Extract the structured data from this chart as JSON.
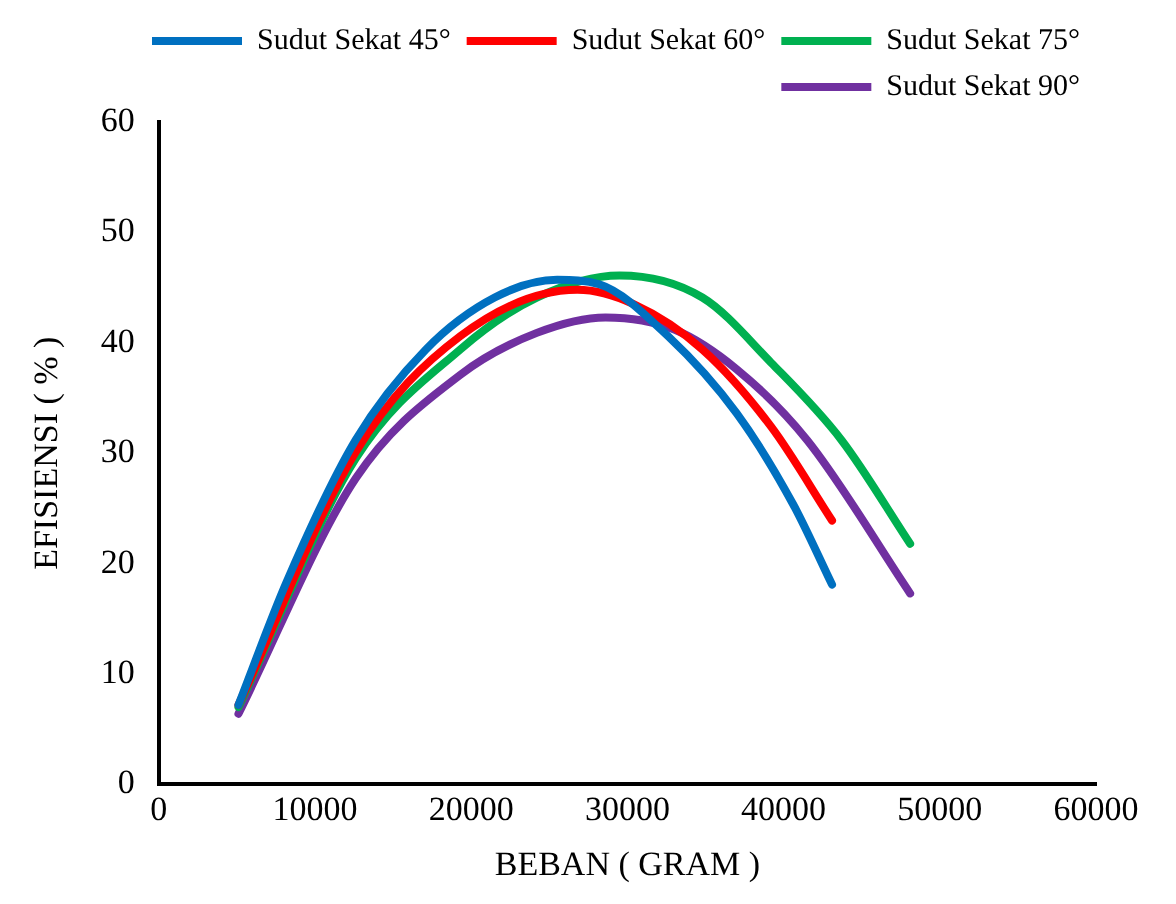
{
  "chart_data": {
    "type": "line",
    "xlabel": "BEBAN ( GRAM )",
    "ylabel": "EFISIENSI ( % )",
    "xlim": [
      0,
      60000
    ],
    "xticks": [
      0,
      10000,
      20000,
      30000,
      40000,
      50000,
      60000
    ],
    "ylim": [
      0,
      60
    ],
    "yticks": [
      0,
      10,
      20,
      30,
      40,
      50,
      60
    ],
    "grid": false,
    "legend": "top right",
    "marker": "none",
    "line_style": "solid",
    "series": [
      {
        "name": "Sudut Sekat 45°",
        "color": "#0070c0",
        "x": [
          5100,
          8200,
          12600,
          17100,
          21500,
          25500,
          28200,
          32600,
          37000,
          40600,
          43100
        ],
        "values": [
          7.2,
          18.4,
          31.2,
          39.4,
          44.1,
          45.7,
          45.3,
          40.6,
          33.6,
          25.4,
          18.1
        ]
      },
      {
        "name": "Sudut Sekat 60°",
        "color": "#ff0000",
        "x": [
          5100,
          12600,
          19300,
          26800,
          30400,
          34800,
          39200,
          43100
        ],
        "values": [
          7.2,
          30.1,
          40.6,
          44.8,
          43.5,
          39.4,
          32.4,
          23.9
        ]
      },
      {
        "name": "Sudut Sekat 75°",
        "color": "#00b050",
        "x": [
          5100,
          12600,
          19300,
          24200,
          29500,
          34800,
          39200,
          43700,
          48100
        ],
        "values": [
          7.0,
          29.5,
          39.4,
          44.1,
          46.1,
          44.1,
          38.2,
          31.2,
          21.8
        ]
      },
      {
        "name": "Sudut Sekat 90°",
        "color": "#7030a0",
        "x": [
          5100,
          12600,
          19300,
          24200,
          28600,
          33000,
          37000,
          41500,
          48100
        ],
        "values": [
          6.4,
          27.7,
          37.1,
          40.9,
          42.3,
          41.2,
          37.6,
          31.2,
          17.3
        ]
      }
    ]
  }
}
